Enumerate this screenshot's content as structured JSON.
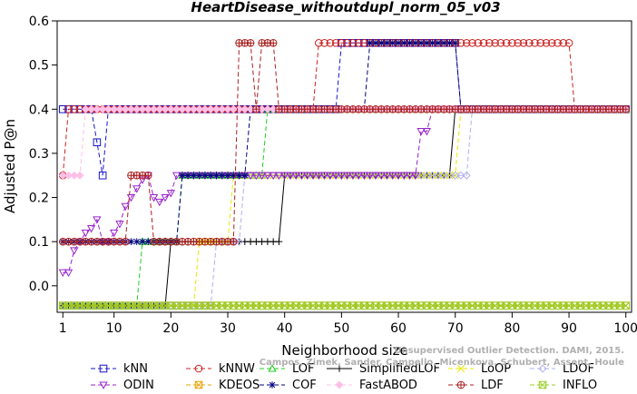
{
  "chart_data": {
    "type": "line",
    "title": "HeartDisease_withoutdupl_norm_05_v03",
    "xlabel": "Neighborhood size",
    "ylabel": "Adjusted P@n",
    "xlim": [
      0,
      101
    ],
    "ylim": [
      -0.06,
      0.6
    ],
    "x_ticks": [
      1,
      10,
      20,
      30,
      40,
      50,
      60,
      70,
      80,
      90,
      100
    ],
    "y_ticks": [
      0.0,
      0.1,
      0.2,
      0.3,
      0.4,
      0.5,
      0.6
    ],
    "y_tick_labels": [
      "0.0",
      "0.1",
      "0.2",
      "0.3",
      "0.4",
      "0.5",
      "0.6"
    ],
    "grid": false,
    "legend_position": "bottom",
    "watermark": [
      "Unsupervised Outlier Detection. DAMI, 2015.",
      "Campos, Zimek, Sander, Campello, Micenkova, Schubert, Assent, Houle"
    ],
    "series": [
      {
        "name": "kNN",
        "color": "#1414cc",
        "marker": "square",
        "dash": "5,3",
        "segments": [
          [
            [
              1,
              0.4
            ],
            [
              6,
              0.4
            ],
            [
              7,
              0.325
            ],
            [
              8,
              0.25
            ],
            [
              9,
              0.4
            ],
            [
              49,
              0.4
            ],
            [
              50,
              0.55
            ],
            [
              70,
              0.55
            ],
            [
              71,
              0.4
            ],
            [
              100,
              0.4
            ]
          ]
        ]
      },
      {
        "name": "kNNW",
        "color": "#cc2222",
        "marker": "circle",
        "dash": "5,3",
        "segments": [
          [
            [
              1,
              0.25
            ],
            [
              2,
              0.4
            ],
            [
              45,
              0.4
            ],
            [
              46,
              0.55
            ],
            [
              90,
              0.55
            ],
            [
              91,
              0.4
            ],
            [
              100,
              0.4
            ]
          ]
        ]
      },
      {
        "name": "LOF",
        "color": "#22cc22",
        "marker": "triangle-up",
        "dash": "5,3",
        "segments": [
          [
            [
              1,
              -0.045
            ],
            [
              14,
              -0.045
            ],
            [
              15,
              0.1
            ],
            [
              21,
              0.1
            ],
            [
              22,
              0.25
            ],
            [
              36,
              0.25
            ],
            [
              37,
              0.4
            ],
            [
              100,
              0.4
            ]
          ]
        ]
      },
      {
        "name": "SimplifiedLOF",
        "color": "#000000",
        "marker": "plus",
        "dash": "",
        "segments": [
          [
            [
              1,
              -0.045
            ],
            [
              19,
              -0.045
            ],
            [
              20,
              0.1
            ],
            [
              39,
              0.1
            ],
            [
              40,
              0.25
            ],
            [
              69,
              0.25
            ],
            [
              70,
              0.4
            ],
            [
              100,
              0.4
            ]
          ]
        ]
      },
      {
        "name": "LoOP",
        "color": "#e8e800",
        "marker": "x",
        "dash": "5,3",
        "segments": [
          [
            [
              1,
              -0.045
            ],
            [
              24,
              -0.045
            ],
            [
              25,
              0.1
            ],
            [
              30,
              0.1
            ],
            [
              31,
              0.25
            ],
            [
              70,
              0.25
            ],
            [
              71,
              0.4
            ],
            [
              100,
              0.4
            ]
          ]
        ]
      },
      {
        "name": "LDOF",
        "color": "#b0b0ee",
        "marker": "diamond",
        "dash": "5,3",
        "segments": [
          [
            [
              1,
              -0.045
            ],
            [
              27,
              -0.045
            ],
            [
              28,
              0.1
            ],
            [
              32,
              0.1
            ],
            [
              33,
              0.25
            ],
            [
              72,
              0.25
            ],
            [
              73,
              0.4
            ],
            [
              100,
              0.4
            ]
          ]
        ]
      },
      {
        "name": "ODIN",
        "color": "#9922cc",
        "marker": "triangle-down",
        "dash": "5,3",
        "segments": [
          [
            [
              1,
              0.03
            ],
            [
              2,
              0.03
            ],
            [
              3,
              0.08
            ],
            [
              4,
              0.1
            ],
            [
              5,
              0.12
            ],
            [
              6,
              0.13
            ],
            [
              7,
              0.15
            ],
            [
              8,
              0.1
            ],
            [
              9,
              0.1
            ],
            [
              10,
              0.12
            ],
            [
              11,
              0.14
            ],
            [
              12,
              0.18
            ],
            [
              13,
              0.2
            ],
            [
              14,
              0.22
            ],
            [
              15,
              0.24
            ],
            [
              16,
              0.25
            ],
            [
              17,
              0.2
            ],
            [
              18,
              0.19
            ],
            [
              19,
              0.2
            ],
            [
              20,
              0.21
            ],
            [
              21,
              0.25
            ],
            [
              63,
              0.25
            ],
            [
              64,
              0.35
            ],
            [
              65,
              0.35
            ],
            [
              66,
              0.4
            ],
            [
              100,
              0.4
            ]
          ]
        ]
      },
      {
        "name": "KDEOS",
        "color": "#e8a000",
        "marker": "square-x",
        "dash": "5,3",
        "segments": [
          [
            [
              1,
              -0.045
            ],
            [
              100,
              -0.045
            ]
          ]
        ]
      },
      {
        "name": "COF",
        "color": "#000080",
        "marker": "star",
        "dash": "5,3",
        "segments": [
          [
            [
              1,
              0.1
            ],
            [
              21,
              0.1
            ],
            [
              22,
              0.25
            ],
            [
              33,
              0.25
            ],
            [
              34,
              0.4
            ],
            [
              54,
              0.4
            ],
            [
              55,
              0.55
            ],
            [
              70,
              0.55
            ],
            [
              71,
              0.4
            ],
            [
              100,
              0.4
            ]
          ]
        ]
      },
      {
        "name": "FastABOD",
        "color": "#ffc0e8",
        "marker": "diamond-filled",
        "dash": "5,3",
        "segments": [
          [
            [
              1,
              0.25
            ],
            [
              4,
              0.25
            ],
            [
              5,
              0.4
            ],
            [
              100,
              0.4
            ]
          ]
        ]
      },
      {
        "name": "LDF",
        "color": "#aa2020",
        "marker": "circle-plus",
        "dash": "5,3",
        "segments": [
          [
            [
              1,
              0.1
            ],
            [
              12,
              0.1
            ],
            [
              13,
              0.25
            ],
            [
              16,
              0.25
            ],
            [
              17,
              0.1
            ],
            [
              31,
              0.1
            ],
            [
              32,
              0.55
            ],
            [
              34,
              0.55
            ],
            [
              35,
              0.4
            ],
            [
              36,
              0.55
            ],
            [
              38,
              0.55
            ],
            [
              39,
              0.4
            ],
            [
              100,
              0.4
            ]
          ]
        ]
      },
      {
        "name": "INFLO",
        "color": "#99cc22",
        "marker": "square-x",
        "dash": "5,3",
        "segments": [
          [
            [
              1,
              -0.045
            ],
            [
              100,
              -0.045
            ]
          ]
        ]
      }
    ]
  }
}
